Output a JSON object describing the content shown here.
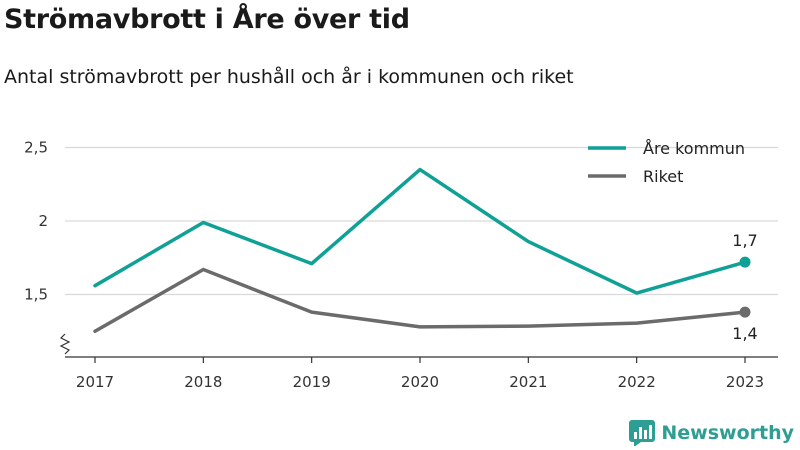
{
  "title": "Strömavbrott i Åre över tid",
  "subtitle": "Antal strömavbrott per hushåll och år i kommunen och riket",
  "brand": {
    "name": "Newsworthy",
    "icon": "bar-chart-logo-icon",
    "color": "#2e9e94"
  },
  "chart_data": {
    "type": "line",
    "x": [
      "2017",
      "2018",
      "2019",
      "2020",
      "2021",
      "2022",
      "2023"
    ],
    "series": [
      {
        "name": "Åre kommun",
        "color": "#0fa096",
        "values": [
          1.56,
          1.99,
          1.71,
          2.35,
          1.86,
          1.51,
          1.72
        ]
      },
      {
        "name": "Riket",
        "color": "#6b6b6b",
        "values": [
          1.25,
          1.67,
          1.38,
          1.28,
          1.285,
          1.305,
          1.38
        ]
      }
    ],
    "yticks": [
      {
        "value": 1.5,
        "label": "1,5"
      },
      {
        "value": 2,
        "label": "2"
      },
      {
        "value": 2.5,
        "label": "2,5"
      }
    ],
    "ylim": [
      1.15,
      2.5
    ],
    "y_axis_break": true,
    "grid": true,
    "legend": "top-right",
    "end_labels": [
      {
        "series": 0,
        "text": "1,7",
        "position": "above"
      },
      {
        "series": 1,
        "text": "1,4",
        "position": "below"
      }
    ],
    "xlabel": "",
    "ylabel": ""
  }
}
